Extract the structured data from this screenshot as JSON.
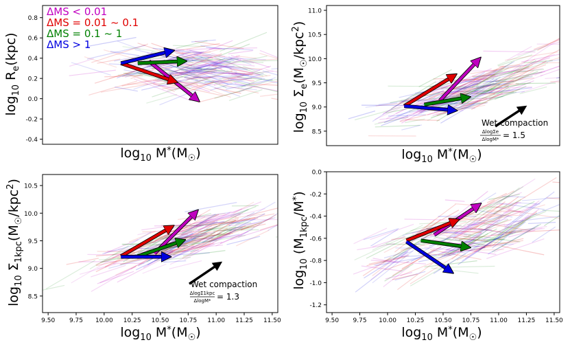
{
  "figure": {
    "legend": [
      {
        "text": "ΔMS < 0.01",
        "color": "#c000c0"
      },
      {
        "text": "ΔMS = 0.01 ~ 0.1",
        "color": "#e00000"
      },
      {
        "text": "ΔMS = 0.1 ~ 1",
        "color": "#008000"
      },
      {
        "text": "ΔMS > 1",
        "color": "#0000e0"
      }
    ]
  },
  "chart_data": [
    {
      "type": "scatter",
      "title": "",
      "xlabel": "log10 M*(M☉)",
      "ylabel": "log10 Re(kpc)",
      "xlim": [
        9.45,
        11.55
      ],
      "ylim": [
        -0.45,
        0.92
      ],
      "xticks": [],
      "yticks": [
        -0.4,
        -0.2,
        0.0,
        0.2,
        0.4,
        0.6,
        0.8
      ],
      "ytick_labels": [
        "-0.4",
        "-0.2",
        "0.0",
        "0.2",
        "0.4",
        "0.6",
        "0.8"
      ],
      "cloud": {
        "x0": 10.8,
        "y0": 0.28,
        "x_spread": 0.8,
        "slope": 0.0,
        "y_spread": 0.2,
        "seg_dx": 0.35
      },
      "arrows": [
        {
          "series": "ΔMS < 0.01",
          "color": "#c000c0",
          "x0": 10.4,
          "y0": 0.37,
          "x1": 10.83,
          "y1": -0.01
        },
        {
          "series": "ΔMS = 0.01 ~ 0.1",
          "color": "#e00000",
          "x0": 10.15,
          "y0": 0.35,
          "x1": 10.63,
          "y1": 0.17
        },
        {
          "series": "ΔMS = 0.1 ~ 1",
          "color": "#008000",
          "x0": 10.3,
          "y0": 0.35,
          "x1": 10.71,
          "y1": 0.37
        },
        {
          "series": "ΔMS > 1",
          "color": "#0000e0",
          "x0": 10.15,
          "y0": 0.35,
          "x1": 10.6,
          "y1": 0.47
        }
      ],
      "annotation": null
    },
    {
      "type": "scatter",
      "title": "",
      "xlabel": "log10 M*(M☉)",
      "ylabel": "log10 Σe(M☉/kpc²)",
      "xlim": [
        9.45,
        11.55
      ],
      "ylim": [
        8.2,
        11.1
      ],
      "xticks": [],
      "yticks": [
        8.5,
        9.0,
        9.5,
        10.0,
        10.5,
        11.0
      ],
      "ytick_labels": [
        "8.5",
        "9.0",
        "9.5",
        "10.0",
        "10.5",
        "11.0"
      ],
      "cloud": {
        "x0": 10.75,
        "y0": 9.35,
        "x_spread": 0.8,
        "slope": 0.75,
        "y_spread": 0.35,
        "seg_dx": 0.35
      },
      "arrows": [
        {
          "series": "ΔMS < 0.01",
          "color": "#c000c0",
          "x0": 10.47,
          "y0": 9.13,
          "x1": 10.82,
          "y1": 9.98
        },
        {
          "series": "ΔMS = 0.01 ~ 0.1",
          "color": "#e00000",
          "x0": 10.15,
          "y0": 9.02,
          "x1": 10.6,
          "y1": 9.65
        },
        {
          "series": "ΔMS = 0.1 ~ 1",
          "color": "#008000",
          "x0": 10.33,
          "y0": 9.05,
          "x1": 10.72,
          "y1": 9.2
        },
        {
          "series": "ΔMS > 1",
          "color": "#0000e0",
          "x0": 10.15,
          "y0": 9.02,
          "x1": 10.6,
          "y1": 8.93
        }
      ],
      "annotation": {
        "title": "Wet compaction",
        "numerator": "ΔlogΣe",
        "denominator": "ΔlogM*",
        "value": "= 1.5",
        "slope": 1.5,
        "x0": 10.97,
        "y0": 8.6,
        "x1": 11.23,
        "y1": 8.99
      }
    },
    {
      "type": "scatter",
      "title": "",
      "xlabel": "log10 M*(M☉)",
      "ylabel": "log10 Σ1kpc(M☉/kpc²)",
      "xlim": [
        9.45,
        11.55
      ],
      "ylim": [
        8.2,
        10.7
      ],
      "xticks": [
        9.5,
        9.75,
        10.0,
        10.25,
        10.5,
        10.75,
        11.0,
        11.25,
        11.5
      ],
      "xtick_labels": [
        "9.50",
        "9.75",
        "10.00",
        "10.25",
        "10.50",
        "10.75",
        "11.00",
        "11.25",
        "11.50"
      ],
      "yticks": [
        8.5,
        9.0,
        9.5,
        10.0,
        10.5
      ],
      "ytick_labels": [
        "8.5",
        "9.0",
        "9.5",
        "10.0",
        "10.5"
      ],
      "cloud": {
        "x0": 10.75,
        "y0": 9.5,
        "x_spread": 0.8,
        "slope": 0.6,
        "y_spread": 0.28,
        "seg_dx": 0.35
      },
      "arrows": [
        {
          "series": "ΔMS < 0.01",
          "color": "#c000c0",
          "x0": 10.45,
          "y0": 9.27,
          "x1": 10.82,
          "y1": 10.02
        },
        {
          "series": "ΔMS = 0.01 ~ 0.1",
          "color": "#e00000",
          "x0": 10.15,
          "y0": 9.22,
          "x1": 10.6,
          "y1": 9.75
        },
        {
          "series": "ΔMS = 0.1 ~ 1",
          "color": "#008000",
          "x0": 10.3,
          "y0": 9.22,
          "x1": 10.7,
          "y1": 9.5
        },
        {
          "series": "ΔMS > 1",
          "color": "#0000e0",
          "x0": 10.15,
          "y0": 9.21,
          "x1": 10.57,
          "y1": 9.21
        }
      ],
      "annotation": {
        "title": "Wet compaction",
        "numerator": "ΔlogΣ1kpc",
        "denominator": "ΔlogM*",
        "value": "= 1.3",
        "slope": 1.3,
        "x0": 10.76,
        "y0": 8.72,
        "x1": 11.03,
        "y1": 9.09
      }
    },
    {
      "type": "scatter",
      "title": "",
      "xlabel": "log10 M*(M☉)",
      "ylabel": "log10 (M1kpc/M*)",
      "xlim": [
        9.45,
        11.55
      ],
      "ylim": [
        -1.27,
        0.0
      ],
      "xticks": [
        9.5,
        9.75,
        10.0,
        10.25,
        10.5,
        10.75,
        11.0,
        11.25,
        11.5
      ],
      "xtick_labels": [
        "9.50",
        "9.75",
        "10.00",
        "10.25",
        "10.50",
        "10.75",
        "11.00",
        "11.25",
        "11.50"
      ],
      "yticks": [
        -1.2,
        -1.0,
        -0.8,
        -0.6,
        -0.4,
        -0.2,
        0.0
      ],
      "ytick_labels": [
        "-1.2",
        "-1.0",
        "-0.8",
        "-0.6",
        "-0.4",
        "-0.2",
        "0.0"
      ],
      "cloud": {
        "x0": 10.75,
        "y0": -0.55,
        "x_spread": 0.8,
        "slope": 0.3,
        "y_spread": 0.22,
        "seg_dx": 0.35
      },
      "arrows": [
        {
          "series": "ΔMS < 0.01",
          "color": "#c000c0",
          "x0": 10.42,
          "y0": -0.57,
          "x1": 10.82,
          "y1": -0.3
        },
        {
          "series": "ΔMS = 0.01 ~ 0.1",
          "color": "#e00000",
          "x0": 10.17,
          "y0": -0.62,
          "x1": 10.62,
          "y1": -0.44
        },
        {
          "series": "ΔMS = 0.1 ~ 1",
          "color": "#008000",
          "x0": 10.3,
          "y0": -0.62,
          "x1": 10.72,
          "y1": -0.68
        },
        {
          "series": "ΔMS > 1",
          "color": "#0000e0",
          "x0": 10.17,
          "y0": -0.63,
          "x1": 10.57,
          "y1": -0.9
        }
      ],
      "annotation": null
    }
  ]
}
